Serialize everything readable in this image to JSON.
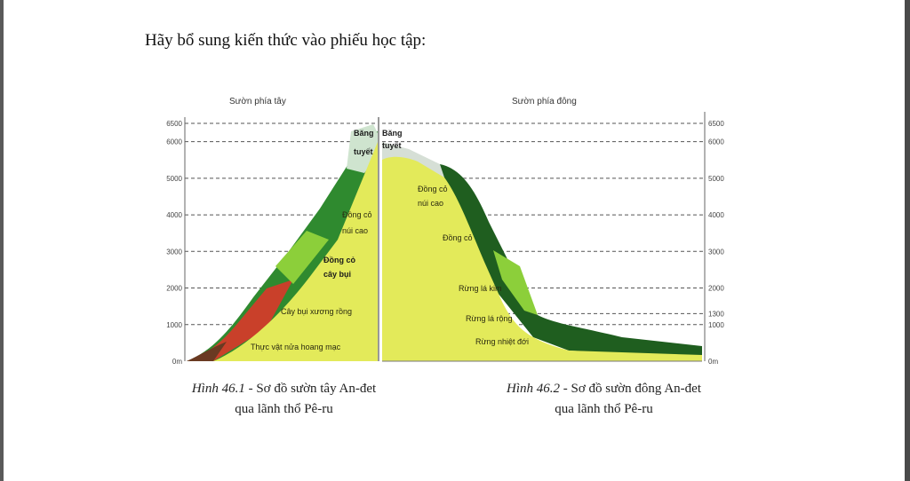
{
  "document": {
    "instruction": "Hãy bổ sung kiến thức vào phiếu học tập:"
  },
  "west_diagram": {
    "title": "Sườn phía tây",
    "ticks": [
      {
        "value": 0,
        "label": "0m"
      },
      {
        "value": 1000,
        "label": "1000"
      },
      {
        "value": 2000,
        "label": "2000"
      },
      {
        "value": 3000,
        "label": "3000"
      },
      {
        "value": 4000,
        "label": "4000"
      },
      {
        "value": 5000,
        "label": "5000"
      },
      {
        "value": 6000,
        "label": "6000"
      },
      {
        "value": 6500,
        "label": "6500"
      }
    ],
    "zones": {
      "snow_1": "Băng",
      "snow_2": "tuyết",
      "alpine_1": "Đồng cỏ",
      "alpine_2": "núi cao",
      "shrub_1": "Đồng cỏ",
      "shrub_2": "cây bụi",
      "cactus": "Cây bụi xương rồng",
      "semi_desert": "Thực vật nửa hoang mạc"
    },
    "caption_fig": "Hình 46.1",
    "caption_rest": " - Sơ đồ sườn tây An-đet",
    "caption_line2": "qua lãnh thổ Pê-ru"
  },
  "east_diagram": {
    "title": "Sườn phía đông",
    "ticks": [
      {
        "value": 0,
        "label": "0m"
      },
      {
        "value": 1000,
        "label": "1000"
      },
      {
        "value": 1300,
        "label": "1300"
      },
      {
        "value": 2000,
        "label": "2000"
      },
      {
        "value": 3000,
        "label": "3000"
      },
      {
        "value": 4000,
        "label": "4000"
      },
      {
        "value": 5000,
        "label": "5000"
      },
      {
        "value": 6000,
        "label": "6000"
      },
      {
        "value": 6500,
        "label": "6500"
      }
    ],
    "zones": {
      "snow_1": "Băng",
      "snow_2": "tuyết",
      "alpine_1": "Đồng cỏ",
      "alpine_2": "núi cao",
      "grass": "Đồng cỏ",
      "conifer": "Rừng lá kim",
      "broadleaf": "Rừng lá rộng",
      "tropical": "Rừng nhiệt đới"
    },
    "caption_fig": "Hình 46.2",
    "caption_rest": " - Sơ đồ sườn đông An-đet",
    "caption_line2": "qua lãnh thổ Pê-ru"
  },
  "colors": {
    "ground": "#e3ea5a",
    "forest_dark": "#1f5e1f",
    "forest_light": "#6fbf3a",
    "cactus_red": "#c9402a",
    "snow": "#d9e6dc"
  }
}
